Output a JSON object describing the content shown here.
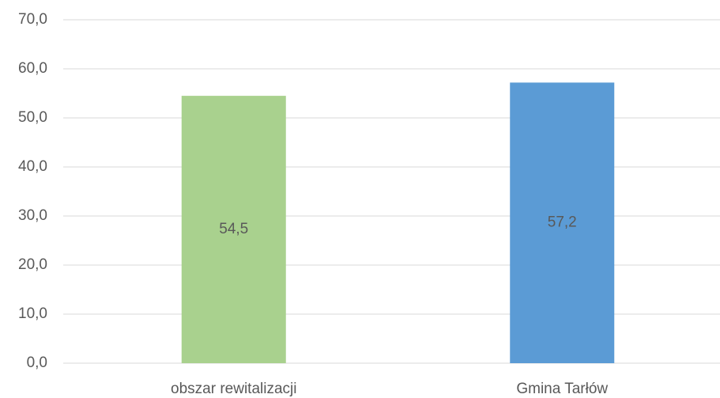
{
  "chart_data": {
    "type": "bar",
    "categories": [
      "obszar rewitalizacji",
      "Gmina Tarłów"
    ],
    "values": [
      54.5,
      57.2
    ],
    "value_labels": [
      "54,5",
      "57,2"
    ],
    "colors": [
      "#a9d18e",
      "#5b9bd5"
    ],
    "ylim": [
      0,
      70
    ],
    "yticks": [
      {
        "value": 0,
        "label": "0,0"
      },
      {
        "value": 10,
        "label": "10,0"
      },
      {
        "value": 20,
        "label": "20,0"
      },
      {
        "value": 30,
        "label": "30,0"
      },
      {
        "value": 40,
        "label": "40,0"
      },
      {
        "value": 50,
        "label": "50,0"
      },
      {
        "value": 60,
        "label": "60,0"
      },
      {
        "value": 70,
        "label": "70,0"
      }
    ],
    "grid": true
  }
}
